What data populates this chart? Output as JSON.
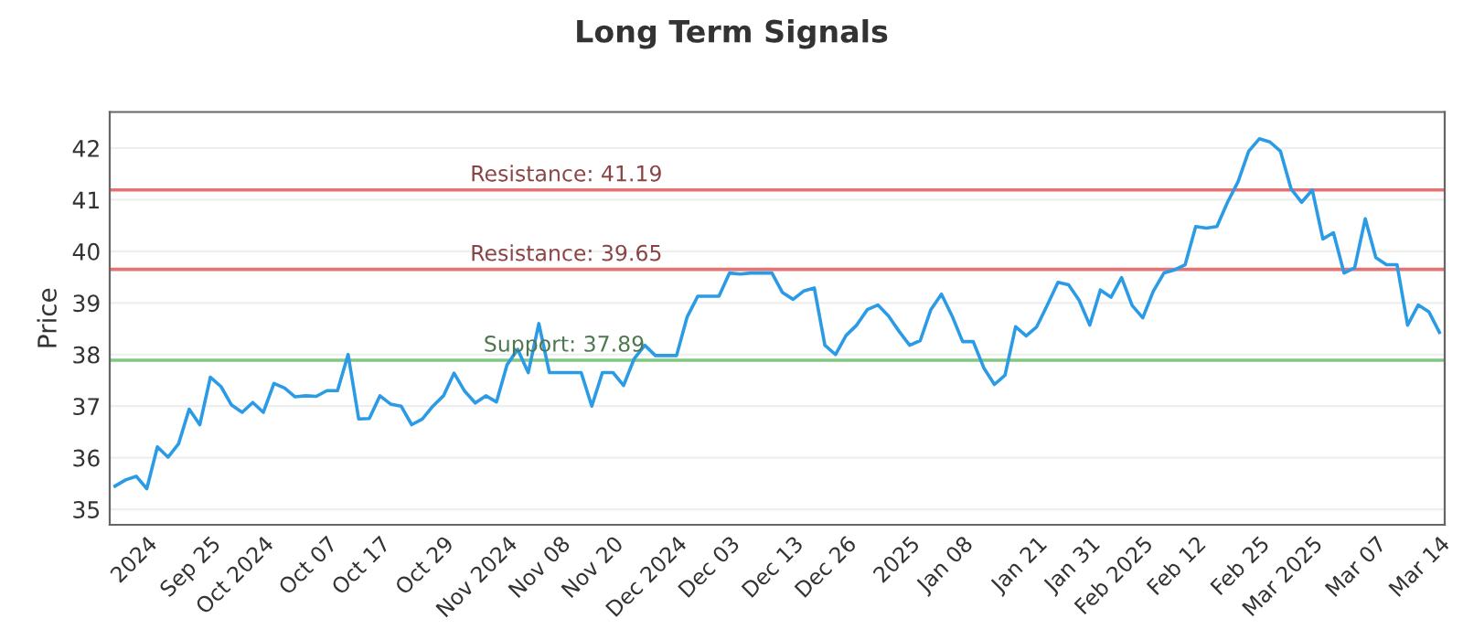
{
  "chart_data": {
    "type": "line",
    "title": "Long Term Signals",
    "ylabel": "Price",
    "categories": [
      null,
      null,
      null,
      "2024",
      null,
      null,
      null,
      null,
      null,
      "Sep 25",
      null,
      null,
      null,
      null,
      "Oct 2024",
      null,
      null,
      null,
      null,
      null,
      "Oct 07",
      null,
      null,
      null,
      null,
      "Oct 17",
      null,
      null,
      null,
      null,
      null,
      "Oct 29",
      null,
      null,
      null,
      null,
      null,
      "Nov 2024",
      null,
      null,
      null,
      null,
      "Nov 08",
      null,
      null,
      null,
      null,
      "Nov 20",
      null,
      null,
      null,
      null,
      null,
      "Dec 2024",
      null,
      null,
      null,
      null,
      "Dec 03",
      null,
      null,
      null,
      null,
      null,
      "Dec 13",
      null,
      null,
      null,
      null,
      "Dec 26",
      null,
      null,
      null,
      null,
      null,
      "2025",
      null,
      null,
      null,
      null,
      "Jan 08",
      null,
      null,
      null,
      null,
      null,
      null,
      "Jan 21",
      null,
      null,
      null,
      null,
      "Jan 31",
      null,
      null,
      null,
      null,
      "Feb 2025",
      null,
      null,
      null,
      null,
      "Feb 12",
      null,
      null,
      null,
      null,
      null,
      "Feb 25",
      null,
      null,
      null,
      null,
      "Mar 2025",
      null,
      null,
      null,
      null,
      null,
      "Mar 07",
      null,
      null,
      null,
      null,
      null,
      "Mar 14"
    ],
    "series": [
      {
        "color": "#2b9be6",
        "values": [
          35.45,
          35.57,
          35.64,
          35.4,
          36.21,
          36.01,
          36.27,
          36.94,
          36.64,
          37.56,
          37.38,
          37.02,
          36.88,
          37.07,
          36.88,
          37.44,
          37.35,
          37.18,
          37.2,
          37.19,
          37.3,
          37.3,
          38.0,
          36.75,
          36.76,
          37.2,
          37.04,
          37.0,
          36.64,
          36.75,
          37.0,
          37.2,
          37.64,
          37.29,
          37.06,
          37.2,
          37.08,
          37.8,
          38.1,
          37.65,
          38.6,
          37.65,
          37.65,
          37.65,
          37.65,
          37.0,
          37.65,
          37.65,
          37.4,
          37.92,
          38.18,
          37.98,
          37.98,
          37.98,
          38.73,
          39.13,
          39.13,
          39.13,
          39.58,
          39.56,
          39.58,
          39.58,
          39.58,
          39.2,
          39.07,
          39.23,
          39.29,
          38.18,
          38.0,
          38.37,
          38.57,
          38.87,
          38.96,
          38.75,
          38.45,
          38.18,
          38.27,
          38.87,
          39.17,
          38.75,
          38.25,
          38.25,
          37.74,
          37.42,
          37.6,
          38.54,
          38.36,
          38.54,
          38.96,
          39.4,
          39.35,
          39.05,
          38.57,
          39.25,
          39.11,
          39.49,
          38.95,
          38.71,
          39.23,
          39.58,
          39.64,
          39.74,
          40.48,
          40.45,
          40.48,
          40.95,
          41.35,
          41.94,
          42.18,
          42.12,
          41.94,
          41.21,
          40.95,
          41.19,
          40.24,
          40.36,
          39.58,
          39.68,
          40.63,
          39.88,
          39.74,
          39.74,
          38.57,
          38.96,
          38.83,
          38.43
        ]
      }
    ],
    "ylim": [
      34.7,
      42.7
    ],
    "yticks": [
      35,
      36,
      37,
      38,
      39,
      40,
      41,
      42
    ],
    "grid": "y",
    "marker": "none",
    "line_style": "solid",
    "ref_lines": [
      {
        "axis": "y",
        "value": 41.19,
        "label": "Resistance: 41.19",
        "color": "#e57373"
      },
      {
        "axis": "y",
        "value": 39.65,
        "label": "Resistance: 39.65",
        "color": "#e57373"
      },
      {
        "axis": "y",
        "value": 37.89,
        "label": "Support: 37.89",
        "color": "#81c784"
      }
    ]
  }
}
